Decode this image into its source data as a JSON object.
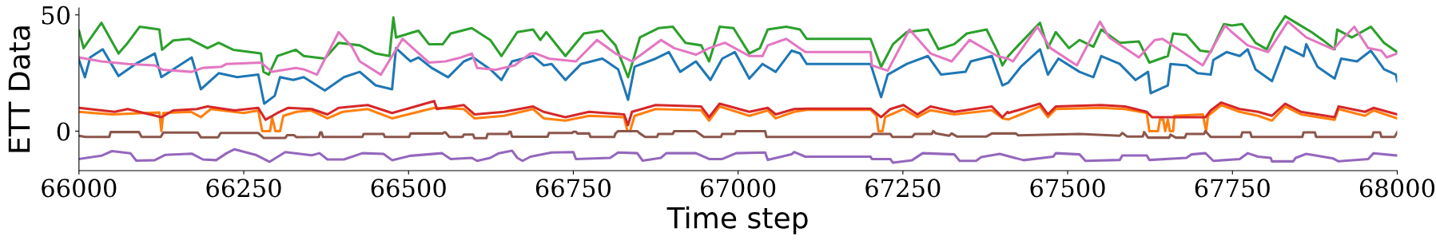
{
  "chart_data": {
    "type": "line",
    "xlabel": "Time step",
    "ylabel": "ETT Data",
    "xlim": [
      66000,
      68000
    ],
    "ylim": [
      -17,
      53
    ],
    "xticks": [
      66000,
      66250,
      66500,
      66750,
      67000,
      67250,
      67500,
      67750,
      68000
    ],
    "yticks": [
      0,
      50
    ],
    "grid": false,
    "marker": "none",
    "line_style": "solid",
    "series": [
      {
        "color": "#1f77b4",
        "x": [
          66000,
          66009,
          66017,
          66036,
          66060,
          66086,
          66115,
          66125,
          66143,
          66171,
          66185,
          66212,
          66240,
          66272,
          66281,
          66297,
          66305,
          66325,
          66341,
          66373,
          66402,
          66426,
          66450,
          66475,
          66481,
          66503,
          66515,
          66535,
          66560,
          66584,
          66598,
          66624,
          66641,
          66657,
          66689,
          66705,
          66717,
          66738,
          66762,
          66794,
          66818,
          66833,
          66843,
          66875,
          66895,
          66912,
          66936,
          66958,
          66976,
          66995,
          67017,
          67037,
          67057,
          67081,
          67094,
          67104,
          67201,
          67217,
          67227,
          67256,
          67288,
          67308,
          67345,
          67353,
          67385,
          67401,
          67410,
          67429,
          67458,
          67470,
          67486,
          67518,
          67539,
          67551,
          67579,
          67603,
          67622,
          67626,
          67652,
          67656,
          67680,
          67697,
          67717,
          67721,
          67741,
          67761,
          67773,
          67785,
          67810,
          67830,
          67858,
          67862,
          67879,
          67905,
          67915,
          67939,
          67960,
          67980,
          67998,
          68000
        ],
        "values": [
          30.6,
          23.2,
          31.7,
          35.2,
          23.7,
          28.9,
          33.4,
          23.2,
          26.6,
          31.7,
          18,
          24.9,
          23.2,
          24.3,
          11.8,
          15.2,
          23.2,
          22,
          23.2,
          17.5,
          23.2,
          25.5,
          19.7,
          18,
          35.7,
          30,
          31.7,
          27.2,
          23.2,
          30,
          31.7,
          26.6,
          22,
          30,
          32.3,
          28.3,
          28.9,
          22,
          28.9,
          31.2,
          26.6,
          13.5,
          27.7,
          31.2,
          34,
          25.5,
          30,
          22,
          31.2,
          34,
          22.6,
          28.9,
          25.5,
          34.6,
          33.4,
          28.9,
          28.9,
          14.6,
          24.3,
          28.9,
          32.3,
          24.3,
          25.5,
          30,
          32.3,
          19.7,
          20.9,
          27.7,
          35.2,
          24.3,
          31.2,
          25.5,
          23.2,
          32.3,
          28.9,
          22,
          25.5,
          16.3,
          19.7,
          28.9,
          28.3,
          24.9,
          24.3,
          30.6,
          34,
          32.3,
          35.2,
          26.6,
          21.5,
          36.3,
          32.3,
          37.4,
          27.7,
          22.6,
          31.2,
          30,
          34.6,
          26.6,
          24.3,
          21.5
        ]
      },
      {
        "color": "#ff7f0e",
        "x": [
          66000,
          66050,
          66100,
          66122,
          66125,
          66128,
          66170,
          66185,
          66200,
          66250,
          66272,
          66278,
          66290,
          66293,
          66298,
          66305,
          66310,
          66330,
          66352,
          66377,
          66400,
          66438,
          66475,
          66539,
          66584,
          66600,
          66645,
          66689,
          66705,
          66738,
          66774,
          66827,
          66832,
          66836,
          66843,
          66875,
          66944,
          66956,
          66972,
          67017,
          67045,
          67057,
          67085,
          67104,
          67201,
          67210,
          67213,
          67219,
          67223,
          67251,
          67272,
          67292,
          67328,
          67385,
          67401,
          67410,
          67458,
          67470,
          67482,
          67551,
          67587,
          67620,
          67624,
          67637,
          67640,
          67645,
          67648,
          67652,
          67655,
          67660,
          67662,
          67705,
          67710,
          67713,
          67733,
          67761,
          67789,
          67810,
          67830,
          67854,
          67905,
          67911,
          67951,
          67964,
          68000
        ],
        "values": [
          8.3,
          7.2,
          7.8,
          8,
          0,
          7.8,
          8.3,
          6,
          9.5,
          7.8,
          8.9,
          0,
          0,
          6,
          0,
          0,
          6.6,
          8.3,
          8.9,
          5.5,
          8.3,
          9.5,
          5.5,
          10,
          9.5,
          5.5,
          6.6,
          9.5,
          5.5,
          4.5,
          6.6,
          6,
          0,
          0,
          6.6,
          9.5,
          9,
          4.5,
          10.6,
          6.6,
          8.9,
          5.5,
          8.3,
          9.2,
          9.2,
          6.6,
          0,
          0,
          6,
          9.5,
          6,
          9,
          7.2,
          9,
          5.5,
          5,
          10.6,
          6,
          9.5,
          10,
          9.5,
          7.8,
          0,
          0,
          5,
          5,
          0,
          5,
          0,
          0,
          6.6,
          7.2,
          0,
          6.6,
          11.2,
          8.3,
          6.6,
          4.5,
          10.6,
          7.2,
          4.9,
          9.5,
          6.6,
          8.9,
          5.5
        ]
      },
      {
        "color": "#2ca02c",
        "x": [
          66000,
          66007,
          66034,
          66060,
          66074,
          66092,
          66122,
          66126,
          66143,
          66167,
          66195,
          66212,
          66234,
          66276,
          66280,
          66288,
          66301,
          66329,
          66341,
          66373,
          66394,
          66426,
          66450,
          66471,
          66477,
          66481,
          66515,
          66531,
          66552,
          66564,
          66596,
          66624,
          66641,
          66665,
          66689,
          66700,
          66709,
          66738,
          66766,
          66794,
          66814,
          66833,
          66851,
          66879,
          66901,
          66920,
          66944,
          66956,
          66972,
          66993,
          67017,
          67033,
          67045,
          67073,
          67094,
          67104,
          67201,
          67217,
          67235,
          67256,
          67288,
          67304,
          67328,
          67347,
          67377,
          67393,
          67401,
          67410,
          67425,
          67458,
          67470,
          67482,
          67502,
          67518,
          67539,
          67551,
          67579,
          67608,
          67624,
          67652,
          67660,
          67680,
          67701,
          67717,
          67737,
          67749,
          67765,
          67785,
          67802,
          67814,
          67830,
          67850,
          67870,
          67887,
          67905,
          67909,
          67931,
          67960,
          67980,
          68000
        ],
        "values": [
          43.2,
          35.7,
          46.6,
          33.4,
          38,
          44.9,
          43.7,
          35,
          39,
          39.7,
          35.7,
          38,
          35,
          33.4,
          25.5,
          24.3,
          32.3,
          35,
          32.3,
          31.2,
          38,
          36.9,
          33.4,
          32.3,
          48.9,
          40.3,
          43.2,
          37.4,
          37.4,
          42,
          44.3,
          39.2,
          32.3,
          42.6,
          43.7,
          39.2,
          42.6,
          32.3,
          42,
          43.2,
          36.9,
          23.2,
          40.3,
          44.3,
          44.9,
          38,
          36.9,
          30,
          44.9,
          44.3,
          33.4,
          35.7,
          43.7,
          44.9,
          43.7,
          39.7,
          39.7,
          27.7,
          37.4,
          42.6,
          43.7,
          35.2,
          37.4,
          42,
          43.7,
          34.6,
          28.3,
          32.3,
          36.9,
          46.6,
          35.7,
          42.6,
          35.7,
          39.2,
          36.3,
          43.7,
          38,
          38.6,
          29.5,
          32.3,
          42,
          41.4,
          34.6,
          34,
          46,
          45.4,
          46,
          38,
          35.2,
          42.6,
          49.4,
          46,
          42.6,
          39.2,
          35.2,
          43.7,
          40.3,
          44.9,
          38,
          34
        ]
      },
      {
        "color": "#d62728",
        "x": [
          66000,
          66054,
          66074,
          66125,
          66143,
          66179,
          66195,
          66236,
          66272,
          66283,
          66301,
          66317,
          66353,
          66377,
          66394,
          66438,
          66475,
          66539,
          66543,
          66584,
          66600,
          66645,
          66689,
          66705,
          66738,
          66774,
          66827,
          66833,
          66839,
          66875,
          66944,
          66956,
          66972,
          67017,
          67045,
          67057,
          67085,
          67104,
          67201,
          67217,
          67231,
          67251,
          67272,
          67292,
          67328,
          67385,
          67401,
          67409,
          67410,
          67458,
          67470,
          67482,
          67551,
          67587,
          67620,
          67628,
          67709,
          67717,
          67733,
          67761,
          67789,
          67810,
          67830,
          67854,
          67905,
          67911,
          67951,
          67964,
          68000
        ],
        "values": [
          10,
          8.3,
          9.5,
          6,
          8.9,
          9.5,
          10.6,
          8.9,
          10,
          4.9,
          7.8,
          10,
          9.5,
          7.2,
          10,
          11.2,
          7.8,
          12.9,
          9.5,
          11.2,
          7.2,
          8.3,
          10.6,
          8.3,
          6,
          8.3,
          7.2,
          2.6,
          8.3,
          11.2,
          10.6,
          6,
          11.8,
          8.3,
          10,
          7.2,
          9.5,
          9.7,
          9.7,
          6,
          9.5,
          11.2,
          7.2,
          10.6,
          8.3,
          10.6,
          6,
          8.3,
          7.8,
          11.8,
          7.2,
          10.6,
          11.2,
          10.6,
          8.3,
          6,
          6,
          8.9,
          12.3,
          9.5,
          8.3,
          6.6,
          11.8,
          8.3,
          6,
          10.6,
          8.3,
          10,
          7.2
        ]
      },
      {
        "color": "#9467bd",
        "x": [
          66000,
          66034,
          66050,
          66078,
          66087,
          66115,
          66131,
          66171,
          66188,
          66208,
          66224,
          66236,
          66268,
          66289,
          66313,
          66353,
          66365,
          66377,
          66402,
          66430,
          66462,
          66475,
          66503,
          66551,
          66564,
          66596,
          66604,
          66624,
          66637,
          66657,
          66665,
          66673,
          66685,
          66717,
          66750,
          66754,
          66806,
          66818,
          66847,
          66855,
          66883,
          66891,
          66936,
          66956,
          66976,
          66997,
          67041,
          67045,
          67081,
          67085,
          67102,
          67201,
          67203,
          67231,
          67235,
          67264,
          67280,
          67328,
          67336,
          67361,
          67369,
          67397,
          67433,
          67478,
          67482,
          67518,
          67527,
          67579,
          67583,
          67620,
          67624,
          67680,
          67688,
          67709,
          67721,
          67761,
          67773,
          67789,
          67808,
          67810,
          67842,
          67846,
          67862,
          67903,
          67911,
          67956,
          67964,
          68000
        ],
        "values": [
          -12,
          -10.6,
          -8.6,
          -9.5,
          -12.7,
          -12.5,
          -10.2,
          -9.7,
          -12.2,
          -12.5,
          -9.5,
          -7.8,
          -10.2,
          -13.2,
          -9,
          -10.4,
          -9.5,
          -12.2,
          -12.2,
          -9.5,
          -9.8,
          -12.5,
          -10.6,
          -9.5,
          -12,
          -11.5,
          -12.8,
          -11.5,
          -9.5,
          -8.4,
          -11.5,
          -12.8,
          -11,
          -9.2,
          -9,
          -12,
          -11.5,
          -9.2,
          -9.5,
          -12.7,
          -11.5,
          -9.5,
          -9.5,
          -12,
          -12,
          -9.5,
          -9.2,
          -12.4,
          -10,
          -9,
          -11,
          -11,
          -12,
          -12,
          -13.6,
          -12.5,
          -9.5,
          -10,
          -12.8,
          -12.8,
          -11.2,
          -9.8,
          -12.5,
          -11,
          -9.5,
          -10,
          -12.8,
          -12.4,
          -10.5,
          -10.5,
          -12.4,
          -11.5,
          -10,
          -9.5,
          -12.8,
          -12,
          -9.5,
          -11,
          -11.5,
          -13,
          -13,
          -11.5,
          -9.8,
          -11.8,
          -13,
          -12,
          -9.5,
          -10.5
        ]
      },
      {
        "color": "#8c564b",
        "x": [
          66000,
          66010,
          66046,
          66048,
          66091,
          66095,
          66124,
          66128,
          66180,
          66185,
          66211,
          66215,
          66272,
          66280,
          66313,
          66316,
          66326,
          66330,
          66364,
          66366,
          66368,
          66370,
          66430,
          66432,
          66462,
          66464,
          66501,
          66503,
          66552,
          66554,
          66556,
          66562,
          66582,
          66584,
          66598,
          66600,
          66618,
          66620,
          66651,
          66653,
          66655,
          66657,
          66711,
          66713,
          66748,
          66750,
          66754,
          66756,
          66774,
          66776,
          66812,
          66814,
          66818,
          66847,
          66851,
          66859,
          66877,
          66879,
          66901,
          66903,
          66936,
          66948,
          66974,
          66976,
          66995,
          66997,
          67041,
          67043,
          67201,
          67205,
          67231,
          67234,
          67264,
          67268,
          67294,
          67296,
          67300,
          67320,
          67324,
          67332,
          67377,
          67385,
          67419,
          67421,
          67425,
          67518,
          67579,
          67583,
          67590,
          67614,
          67616,
          67622,
          67654,
          67656,
          67664,
          67678,
          67680,
          67707,
          67709,
          67717,
          67763,
          67765,
          67777,
          67779,
          67856,
          67858,
          67875,
          67877,
          67962,
          67964,
          67974,
          67976,
          67996,
          68000
        ],
        "values": [
          -2,
          -2.5,
          -2.5,
          -0.4,
          -0.4,
          -2.5,
          -2.5,
          -0.6,
          -0.6,
          -2.7,
          -2.7,
          -0.8,
          -0.8,
          -2.9,
          -2.9,
          -1.7,
          -1.7,
          -2.6,
          -2.5,
          -0.5,
          -0.5,
          -2.5,
          -2.5,
          -1.2,
          -1.2,
          -2.5,
          -2.5,
          -1,
          -1,
          -0.5,
          -0.5,
          -2.5,
          -2.5,
          -1.5,
          -1.5,
          -3,
          -3,
          -1.2,
          -1.2,
          -0.3,
          -0.3,
          -2.4,
          -2.4,
          -0.8,
          -0.8,
          -0.3,
          -0.3,
          -1,
          -1,
          -2.5,
          -2.5,
          -1,
          0,
          0,
          -1,
          -2.5,
          -2.5,
          -1.2,
          -1.2,
          0,
          0,
          -2.5,
          -2.5,
          -1.2,
          -1.2,
          0,
          0,
          -2.5,
          -2.5,
          -1.2,
          -1.2,
          -2.5,
          -2.5,
          -1.2,
          -1.2,
          0,
          -1,
          -2,
          -1,
          -2.3,
          -2.3,
          -1,
          -1,
          -1,
          -1.8,
          -1.2,
          -2,
          -0.8,
          -2.3,
          -2.3,
          -0.4,
          -2.8,
          -2.8,
          -1.5,
          -2.8,
          -2.8,
          -1.2,
          -1.2,
          0,
          -2.5,
          -2.5,
          -0.5,
          -0.5,
          -2.5,
          -2.5,
          -0.5,
          -0.5,
          -2.5,
          -2.5,
          -0.5,
          -0.5,
          -2.5,
          -2.5,
          -0.5
        ]
      },
      {
        "color": "#e377c2",
        "x": [
          66000,
          66034,
          66074,
          66115,
          66127,
          66171,
          66188,
          66216,
          66224,
          66276,
          66293,
          66329,
          66341,
          66361,
          66394,
          66414,
          66426,
          66458,
          66475,
          66491,
          66511,
          66531,
          66556,
          66580,
          66596,
          66604,
          66632,
          66661,
          66685,
          66693,
          66713,
          66754,
          66786,
          66814,
          66839,
          66883,
          66903,
          66936,
          66956,
          66980,
          67017,
          67037,
          67045,
          67073,
          67102,
          67201,
          67203,
          67227,
          67260,
          67292,
          67324,
          67351,
          67393,
          67409,
          67417,
          67454,
          67474,
          67514,
          67549,
          67563,
          67608,
          67632,
          67644,
          67668,
          67705,
          67739,
          67749,
          67773,
          67804,
          67834,
          67862,
          67903,
          67919,
          67935,
          67956,
          67976,
          67984,
          68000
        ],
        "values": [
          31.7,
          30,
          28.9,
          28.3,
          26.4,
          25.5,
          27.2,
          27.7,
          28.9,
          29.5,
          25.5,
          27.2,
          26.6,
          24.3,
          42.6,
          36.3,
          30,
          24.3,
          32.3,
          39.7,
          34.6,
          29.5,
          30,
          31.7,
          33.4,
          27.2,
          26.4,
          28.3,
          33.4,
          33.4,
          31.2,
          30,
          39.2,
          33.4,
          30,
          39.2,
          35.7,
          32.9,
          35.7,
          38,
          32.3,
          32.3,
          36.9,
          39.7,
          34,
          34,
          28.3,
          26,
          43.7,
          33.4,
          30,
          39.2,
          32.3,
          31.2,
          30,
          44.9,
          35.7,
          28.3,
          47.1,
          40.3,
          31.7,
          39.2,
          39.7,
          35.2,
          28.3,
          45.4,
          42.6,
          36.9,
          34,
          47.1,
          40.3,
          35.2,
          40.3,
          44.9,
          35.7,
          34.6,
          31.7,
          33.4
        ]
      }
    ]
  }
}
